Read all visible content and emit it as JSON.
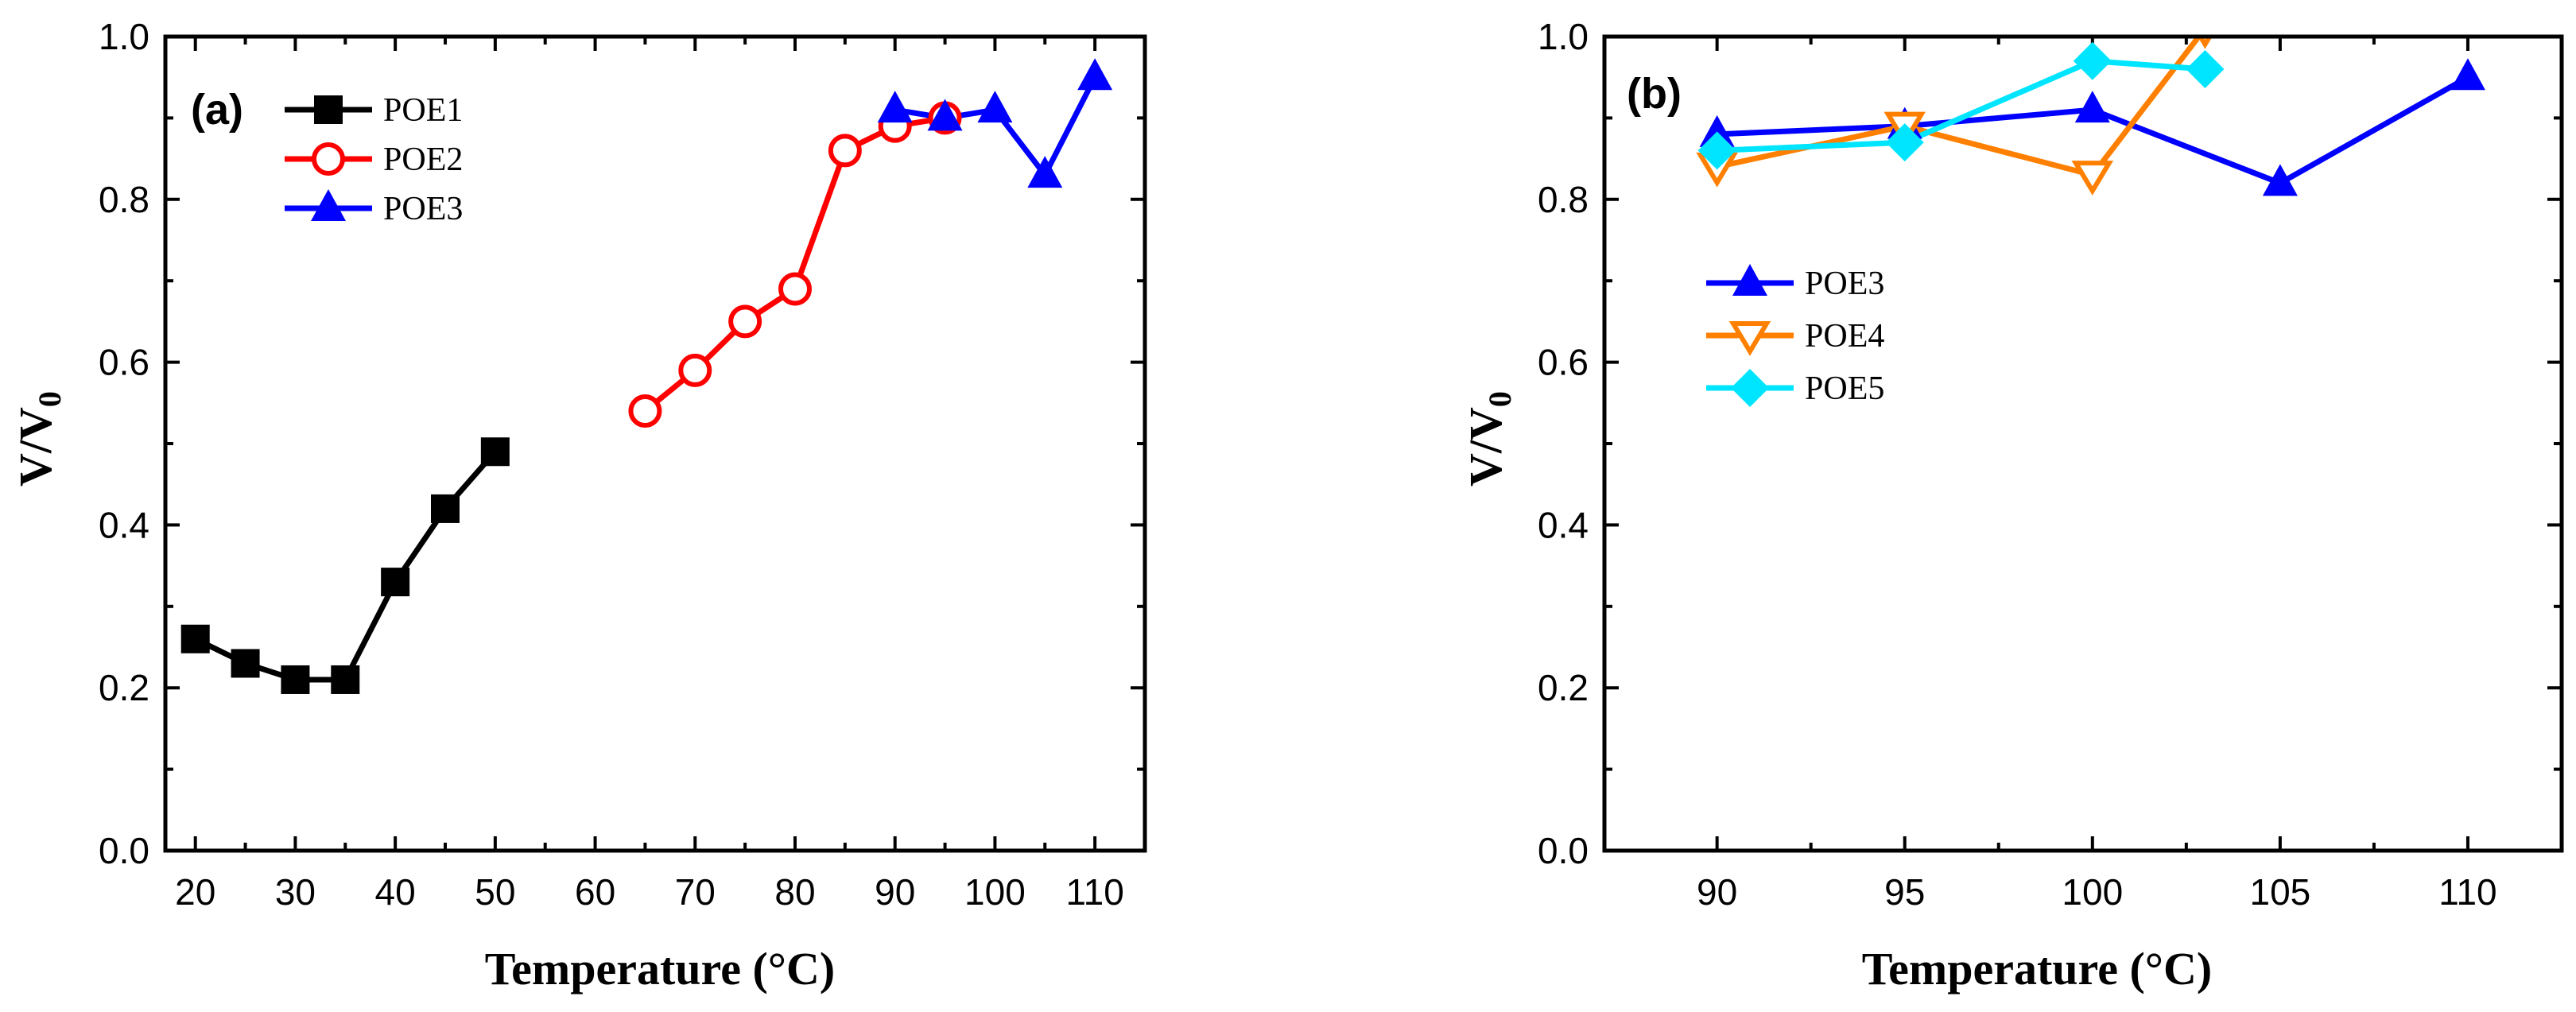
{
  "chart_data": [
    {
      "type": "line",
      "panel_label": "(a)",
      "xlabel": "Temperature (°C)",
      "ylabel_main": "V/V",
      "ylabel_sub": "0",
      "xlim": [
        17,
        115
      ],
      "ylim": [
        0.0,
        1.0
      ],
      "xticks": [
        20,
        30,
        40,
        50,
        60,
        70,
        80,
        90,
        100,
        110
      ],
      "xtick_labels": [
        "20",
        "30",
        "40",
        "50",
        "60",
        "70",
        "80",
        "90",
        "100",
        "110"
      ],
      "yticks": [
        0.0,
        0.2,
        0.4,
        0.6,
        0.8,
        1.0
      ],
      "ytick_labels": [
        "0.0",
        "0.2",
        "0.4",
        "0.6",
        "0.8",
        "1.0"
      ],
      "legend_position": "top-left",
      "series": [
        {
          "name": "POE1",
          "color": "#000000",
          "marker": "square-filled",
          "x": [
            20,
            25,
            30,
            35,
            40,
            45,
            50
          ],
          "y": [
            0.26,
            0.23,
            0.21,
            0.21,
            0.33,
            0.42,
            0.49
          ]
        },
        {
          "name": "POE2",
          "color": "#ff0000",
          "marker": "circle-open",
          "x": [
            65,
            70,
            75,
            80,
            85,
            90,
            95
          ],
          "y": [
            0.54,
            0.59,
            0.65,
            0.69,
            0.86,
            0.89,
            0.9
          ]
        },
        {
          "name": "POE3",
          "color": "#0000ff",
          "marker": "triangle-up-filled",
          "x": [
            90,
            95,
            100,
            105,
            110
          ],
          "y": [
            0.91,
            0.9,
            0.91,
            0.83,
            0.95
          ]
        }
      ]
    },
    {
      "type": "line",
      "panel_label": "(b)",
      "xlabel": "Temperature (°C)",
      "ylabel_main": "V/V",
      "ylabel_sub": "0",
      "xlim": [
        87.0,
        112.5
      ],
      "ylim": [
        0.0,
        1.0
      ],
      "xticks": [
        90,
        95,
        100,
        105,
        110
      ],
      "xtick_labels": [
        "90",
        "95",
        "100",
        "105",
        "110"
      ],
      "yticks": [
        0.0,
        0.2,
        0.4,
        0.6,
        0.8,
        1.0
      ],
      "ytick_labels": [
        "0.0",
        "0.2",
        "0.4",
        "0.6",
        "0.8",
        "1.0"
      ],
      "legend_position": "center-left",
      "series": [
        {
          "name": "POE3",
          "color": "#0000ff",
          "marker": "triangle-up-filled",
          "x": [
            90,
            95,
            100,
            105,
            110
          ],
          "y": [
            0.88,
            0.89,
            0.91,
            0.82,
            0.95
          ]
        },
        {
          "name": "POE4",
          "color": "#ff8000",
          "marker": "triangle-down-open",
          "x": [
            90,
            95,
            100,
            103
          ],
          "y": [
            0.84,
            0.89,
            0.83,
            1.01
          ]
        },
        {
          "name": "POE5",
          "color": "#00e5ff",
          "marker": "diamond-filled",
          "x": [
            90,
            95,
            100,
            103
          ],
          "y": [
            0.86,
            0.87,
            0.97,
            0.96
          ]
        }
      ]
    }
  ]
}
